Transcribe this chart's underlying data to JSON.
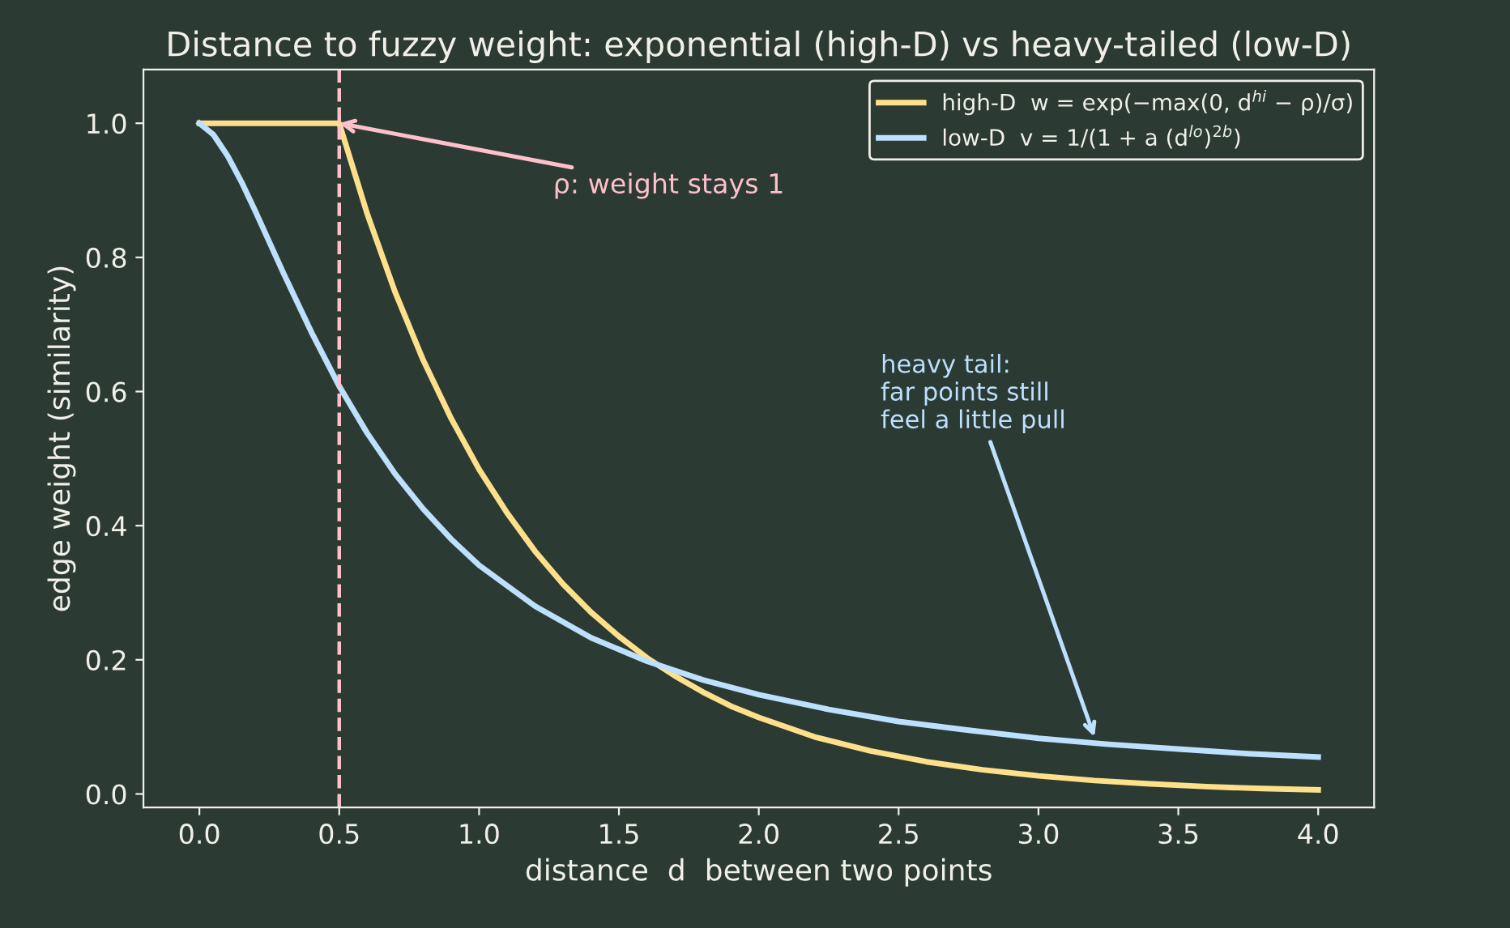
{
  "chart_data": {
    "type": "line",
    "title": "Distance to fuzzy weight: exponential (high-D) vs heavy-tailed (low-D)",
    "xlabel": "distance  d  between two points",
    "ylabel": "edge weight (similarity)",
    "series": [
      {
        "name": "high-D  w = exp(−max(0, d$^{hi}$ − ρ)/σ)",
        "color": "#ffe08a",
        "x": [
          0.0,
          0.5,
          0.6,
          0.7,
          0.8,
          0.9,
          1.0,
          1.1,
          1.2,
          1.3,
          1.4,
          1.5,
          1.6,
          1.7,
          1.8,
          1.9,
          2.0,
          2.2,
          2.4,
          2.6,
          2.8,
          3.0,
          3.2,
          3.4,
          3.6,
          3.8,
          4.0
        ],
        "values": [
          1.0,
          1.0,
          0.865,
          0.748,
          0.647,
          0.56,
          0.484,
          0.419,
          0.362,
          0.313,
          0.271,
          0.235,
          0.203,
          0.176,
          0.152,
          0.131,
          0.114,
          0.085,
          0.064,
          0.048,
          0.036,
          0.027,
          0.02,
          0.015,
          0.011,
          0.008,
          0.006
        ]
      },
      {
        "name": "low-D  v = 1/(1 + a (d$^{lo}$)$^{2b}$)",
        "color": "#bde0fe",
        "x": [
          0.0,
          0.05,
          0.1,
          0.15,
          0.2,
          0.3,
          0.4,
          0.5,
          0.6,
          0.7,
          0.8,
          0.9,
          1.0,
          1.2,
          1.4,
          1.6,
          1.8,
          2.0,
          2.25,
          2.5,
          2.75,
          3.0,
          3.25,
          3.5,
          3.75,
          4.0
        ],
        "values": [
          1.0,
          0.983,
          0.952,
          0.913,
          0.869,
          0.777,
          0.689,
          0.608,
          0.538,
          0.477,
          0.425,
          0.38,
          0.341,
          0.28,
          0.233,
          0.198,
          0.17,
          0.148,
          0.126,
          0.108,
          0.095,
          0.083,
          0.074,
          0.067,
          0.06,
          0.055
        ]
      }
    ],
    "ref_lines": [
      {
        "axis": "x",
        "value": 0.5,
        "color": "#ffc0cb",
        "line_style": "dashed"
      }
    ],
    "annotations": [
      {
        "text": "ρ: weight stays 1",
        "x": 0.5,
        "y": 1.0
      },
      {
        "text": "heavy tail:\nfar points still\nfeel a little pull",
        "x": 3.2,
        "y": 0.085
      }
    ],
    "xlim": [
      -0.2,
      4.2
    ],
    "ylim": [
      -0.02,
      1.08
    ],
    "xticks": [
      {
        "value": 0,
        "label": "0.0"
      },
      0.5,
      {
        "value": 1,
        "label": "1.0"
      },
      1.5,
      {
        "value": 2,
        "label": "2.0"
      },
      2.5,
      {
        "value": 3,
        "label": "3.0"
      },
      3.5,
      {
        "value": 4,
        "label": "4.0"
      }
    ],
    "yticks": [
      {
        "value": 0,
        "label": "0.0"
      },
      0.2,
      0.4,
      0.6,
      0.8,
      {
        "value": 1,
        "label": "1.0"
      }
    ],
    "grid": false,
    "legend": "top right",
    "marker": "none",
    "line_style": "solid"
  }
}
